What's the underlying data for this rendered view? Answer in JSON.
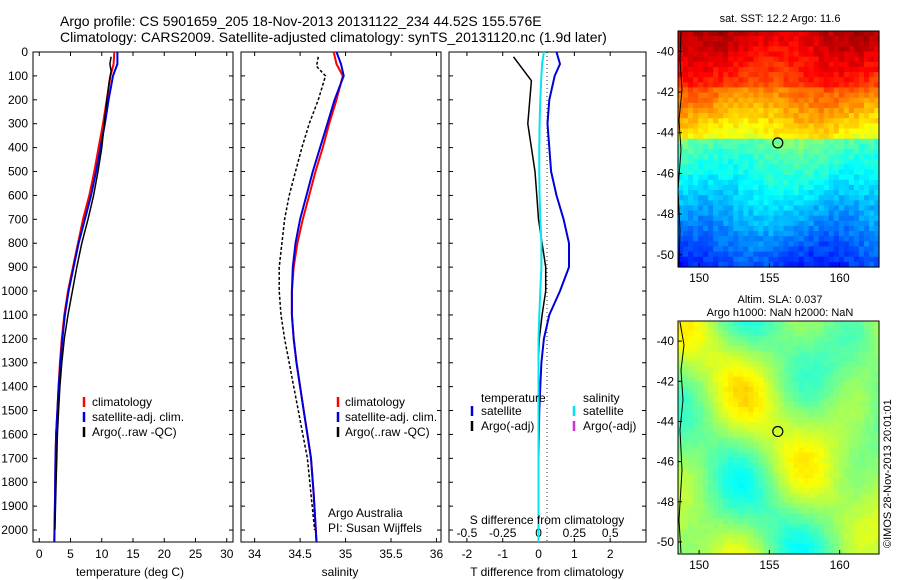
{
  "header": {
    "line1": "Argo profile: CS 5901659_205 18-Nov-2013 20131122_234 44.52S 155.576E",
    "line2": "Climatology: CARS2009. Satellite-adjusted climatology: synTS_20131120.nc (1.9d later)"
  },
  "colors": {
    "climatology": "#ff0000",
    "satellite": "#0000dd",
    "argo": "#000000",
    "salinity_satellite": "#00e5ee",
    "salinity_argo": "#cc33cc"
  },
  "chart_data": [
    {
      "type": "line",
      "id": "temperature",
      "xlabel": "temperature (deg C)",
      "xlim": [
        -1,
        31
      ],
      "ylim": [
        2050,
        0
      ],
      "xticks": [
        0,
        5,
        10,
        15,
        20,
        25,
        30
      ],
      "yticks": [
        0,
        100,
        200,
        300,
        400,
        500,
        600,
        700,
        800,
        900,
        1000,
        1100,
        1200,
        1300,
        1400,
        1500,
        1600,
        1700,
        1800,
        1900,
        2000
      ],
      "legend": [
        "climatology",
        "satellite-adj. clim.",
        "Argo(..raw -QC)"
      ],
      "series": [
        {
          "name": "climatology",
          "color": "#ff0000",
          "width": 2,
          "x": [
            12.0,
            11.9,
            11.4,
            10.8,
            10.2,
            9.5,
            8.8,
            8.0,
            7.0,
            6.2,
            5.4,
            4.6,
            4.0,
            3.6,
            3.3,
            3.1,
            2.9,
            2.7,
            2.6,
            2.5,
            2.4
          ],
          "y": [
            0,
            50,
            100,
            200,
            300,
            400,
            500,
            600,
            700,
            800,
            900,
            1000,
            1100,
            1200,
            1300,
            1400,
            1500,
            1600,
            1700,
            1900,
            2050
          ]
        },
        {
          "name": "satellite-adj. clim.",
          "color": "#0000dd",
          "width": 2,
          "x": [
            12.5,
            12.5,
            11.8,
            11.1,
            10.5,
            9.8,
            9.1,
            8.3,
            7.3,
            6.3,
            5.5,
            4.7,
            4.1,
            3.7,
            3.4,
            3.1,
            2.9,
            2.7,
            2.6,
            2.5,
            2.4
          ],
          "y": [
            0,
            50,
            100,
            200,
            300,
            400,
            500,
            600,
            700,
            800,
            900,
            1000,
            1100,
            1200,
            1300,
            1400,
            1500,
            1600,
            1700,
            1900,
            2050
          ]
        },
        {
          "name": "Argo(..raw -QC)",
          "color": "#000000",
          "width": 1.5,
          "x": [
            11.5,
            11.3,
            11.5,
            11.2,
            10.8,
            10.4,
            10.0,
            9.4,
            8.7,
            7.8,
            6.8,
            6.0,
            5.3,
            4.6,
            4.0,
            3.6,
            3.3,
            3.1,
            2.9,
            2.8,
            2.7,
            2.6,
            2.5
          ],
          "y": [
            20,
            50,
            80,
            120,
            200,
            300,
            400,
            500,
            600,
            700,
            800,
            900,
            1000,
            1100,
            1200,
            1300,
            1400,
            1500,
            1600,
            1700,
            1800,
            1900,
            2000
          ]
        }
      ]
    },
    {
      "type": "line",
      "id": "salinity",
      "xlabel": "salinity",
      "xlim": [
        33.85,
        36.05
      ],
      "ylim": [
        2050,
        0
      ],
      "xticks": [
        34,
        34.5,
        35,
        35.5,
        36
      ],
      "legend": [
        "climatology",
        "satellite-adj. clim.",
        "Argo(..raw -QC)"
      ],
      "annotation": [
        "Argo Australia",
        "PI: Susan Wijffels"
      ],
      "series": [
        {
          "name": "climatology",
          "color": "#ff0000",
          "width": 2,
          "x": [
            34.87,
            34.9,
            34.97,
            34.9,
            34.82,
            34.75,
            34.67,
            34.6,
            34.53,
            34.47,
            34.43,
            34.41,
            34.41,
            34.43,
            34.46,
            34.5,
            34.54,
            34.58,
            34.62,
            34.65,
            34.68
          ],
          "y": [
            0,
            50,
            100,
            200,
            300,
            400,
            500,
            600,
            700,
            800,
            900,
            1000,
            1100,
            1200,
            1300,
            1400,
            1500,
            1600,
            1700,
            1850,
            2050
          ]
        },
        {
          "name": "satellite-adj. clim.",
          "color": "#0000dd",
          "width": 2,
          "x": [
            34.9,
            34.95,
            34.98,
            34.88,
            34.8,
            34.72,
            34.64,
            34.57,
            34.5,
            34.45,
            34.42,
            34.41,
            34.41,
            34.43,
            34.46,
            34.5,
            34.54,
            34.58,
            34.62,
            34.65,
            34.68
          ],
          "y": [
            0,
            50,
            100,
            200,
            300,
            400,
            500,
            600,
            700,
            800,
            900,
            1000,
            1100,
            1200,
            1300,
            1400,
            1500,
            1600,
            1700,
            1850,
            2050
          ]
        },
        {
          "name": "Argo(..raw -QC)",
          "color": "#000000",
          "width": 1.5,
          "dash": "3 2",
          "x": [
            34.7,
            34.68,
            34.78,
            34.7,
            34.6,
            34.52,
            34.45,
            34.38,
            34.33,
            34.3,
            34.27,
            34.27,
            34.29,
            34.33,
            34.38,
            34.43,
            34.48,
            34.53,
            34.58,
            34.62,
            34.66
          ],
          "y": [
            20,
            60,
            100,
            200,
            300,
            400,
            500,
            600,
            700,
            800,
            900,
            1000,
            1100,
            1200,
            1300,
            1400,
            1500,
            1600,
            1700,
            1850,
            2000
          ]
        }
      ]
    },
    {
      "type": "line",
      "id": "difference",
      "xlabel": "T difference from climatology",
      "xlabel2": "S difference from climatology",
      "xlim": [
        -2.5,
        3.0
      ],
      "ylim": [
        2050,
        0
      ],
      "xticks": [
        -2,
        -1,
        0,
        1,
        2
      ],
      "xticks_top": [
        -0.5,
        -0.25,
        0,
        0.25,
        0.5
      ],
      "legend_titles": [
        "temperature",
        "salinity"
      ],
      "legend": [
        "satellite",
        "Argo(-adj)",
        "satellite",
        "Argo(-adj)"
      ],
      "series": [
        {
          "name": "temperature satellite",
          "color": "#0000dd",
          "width": 2,
          "x": [
            0.5,
            0.6,
            0.45,
            0.3,
            0.25,
            0.3,
            0.35,
            0.5,
            0.7,
            0.85,
            0.85,
            0.6,
            0.3,
            0.15,
            0.08,
            0.05,
            0.02,
            0.01,
            0.0,
            0.0,
            0.0
          ],
          "y": [
            0,
            50,
            100,
            200,
            300,
            400,
            500,
            600,
            700,
            800,
            900,
            1000,
            1100,
            1200,
            1300,
            1400,
            1500,
            1600,
            1700,
            1850,
            2050
          ]
        },
        {
          "name": "temperature Argo(-adj)",
          "color": "#000000",
          "width": 1.5,
          "x": [
            -0.7,
            -0.5,
            -0.2,
            -0.3,
            -0.2,
            -0.1,
            -0.05,
            0.0,
            0.1,
            0.2,
            0.2,
            0.1,
            0.02,
            0.0,
            0.0,
            0.0,
            0.0,
            0.0,
            0.0
          ],
          "y": [
            20,
            60,
            120,
            300,
            400,
            500,
            600,
            700,
            800,
            900,
            1000,
            1100,
            1200,
            1300,
            1400,
            1500,
            1700,
            1850,
            2000
          ]
        },
        {
          "name": "salinity satellite",
          "color": "#00e5ee",
          "width": 2,
          "x": [
            0.15,
            0.1,
            0.08,
            0.05,
            0.03,
            0.02,
            0.02,
            0.03,
            0.05,
            0.08,
            0.08,
            0.05,
            0.02,
            0.0,
            0.0,
            0.0,
            0.0,
            0.0,
            0.0
          ],
          "y": [
            0,
            50,
            100,
            200,
            300,
            400,
            500,
            600,
            700,
            800,
            900,
            1000,
            1100,
            1200,
            1400,
            1600,
            1700,
            1850,
            2050
          ]
        }
      ]
    }
  ],
  "maps": {
    "sst": {
      "title": "sat. SST: 12.2 Argo: 11.6",
      "xticks": [
        150,
        155,
        160
      ],
      "yticks": [
        -40,
        -42,
        -44,
        -46,
        -48,
        -50
      ],
      "float_marker": {
        "lon": 155.6,
        "lat": -44.5
      }
    },
    "sla": {
      "title_line1": "Altim. SLA: 0.037",
      "title_line2": "Argo h1000: NaN h2000: NaN",
      "xticks": [
        150,
        155,
        160
      ],
      "yticks": [
        -40,
        -42,
        -44,
        -46,
        -48,
        -50
      ],
      "float_marker": {
        "lon": 155.6,
        "lat": -44.5
      }
    }
  },
  "footer_stamp": "©IMOS 28-Nov-2013 20:01:01"
}
